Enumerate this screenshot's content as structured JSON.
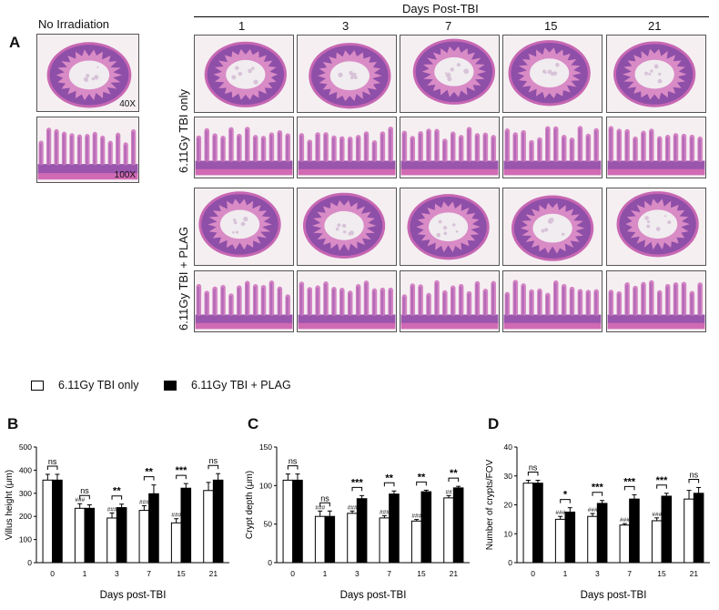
{
  "panelA": {
    "letter": "A",
    "no_irradiation_label": "No Irradiation",
    "days_header": "Days Post-TBI",
    "day_labels": [
      "1",
      "3",
      "7",
      "15",
      "21"
    ],
    "magnifications": [
      "40X",
      "100X"
    ],
    "row_labels": [
      "6.11Gy TBI only",
      "6.11Gy TBI + PLAG"
    ]
  },
  "legend": {
    "items": [
      {
        "label": "6.11Gy TBI only",
        "fill": "#ffffff"
      },
      {
        "label": "6.11Gy TBI + PLAG",
        "fill": "#000000"
      }
    ]
  },
  "chart_data": [
    {
      "letter": "B",
      "type": "bar",
      "ylabel": "Villus height (μm)",
      "xlabel": "Days post-TBI",
      "ylim": [
        0,
        500
      ],
      "yticks": [
        "0",
        "100",
        "200",
        "300",
        "400",
        "500"
      ],
      "categories": [
        "0",
        "1",
        "3",
        "7",
        "15",
        "21"
      ],
      "series": [
        {
          "values": [
            357,
            235,
            193,
            226,
            172,
            312
          ],
          "errors": [
            25,
            20,
            22,
            20,
            18,
            35
          ],
          "fill": "#ffffff"
        },
        {
          "values": [
            357,
            235,
            238,
            298,
            322,
            357
          ],
          "errors": [
            25,
            15,
            15,
            38,
            20,
            28
          ],
          "fill": "#000000"
        }
      ],
      "hash_marks": [
        "",
        "###",
        "###",
        "###",
        "###",
        ""
      ],
      "significance": [
        "ns",
        "ns",
        "**",
        "**",
        "***",
        "ns"
      ]
    },
    {
      "letter": "C",
      "type": "bar",
      "ylabel": "Crypt depth (μm)",
      "xlabel": "Days post-TBI",
      "ylim": [
        0,
        150
      ],
      "yticks": [
        "0",
        "50",
        "100",
        "150"
      ],
      "categories": [
        "0",
        "1",
        "3",
        "7",
        "15",
        "21"
      ],
      "series": [
        {
          "values": [
            107,
            60,
            64,
            58,
            54,
            84
          ],
          "errors": [
            8,
            7,
            3,
            3,
            2,
            3
          ],
          "fill": "#ffffff"
        },
        {
          "values": [
            107,
            60,
            83,
            89,
            92,
            97
          ],
          "errors": [
            8,
            7,
            4,
            4,
            2,
            2
          ],
          "fill": "#000000"
        }
      ],
      "hash_marks": [
        "",
        "###",
        "###",
        "###",
        "###",
        "##"
      ],
      "significance": [
        "ns",
        "ns",
        "***",
        "**",
        "**",
        "**"
      ]
    },
    {
      "letter": "D",
      "type": "bar",
      "ylabel": "Number of crypts/FOV",
      "xlabel": "Days post-TBI",
      "ylim": [
        0,
        40
      ],
      "yticks": [
        "0",
        "10",
        "20",
        "30",
        "40"
      ],
      "categories": [
        "0",
        "1",
        "3",
        "7",
        "15",
        "21"
      ],
      "series": [
        {
          "values": [
            27.5,
            15,
            16,
            13,
            14.5,
            22
          ],
          "errors": [
            1,
            1,
            1,
            0.5,
            1,
            3
          ],
          "fill": "#ffffff"
        },
        {
          "values": [
            27.5,
            17.5,
            20.5,
            22,
            23,
            24
          ],
          "errors": [
            1,
            1.5,
            1,
            1.5,
            1,
            2
          ],
          "fill": "#000000"
        }
      ],
      "hash_marks": [
        "",
        "###",
        "###",
        "###",
        "###",
        ""
      ],
      "significance": [
        "ns",
        "*",
        "***",
        "***",
        "***",
        "ns"
      ]
    }
  ]
}
